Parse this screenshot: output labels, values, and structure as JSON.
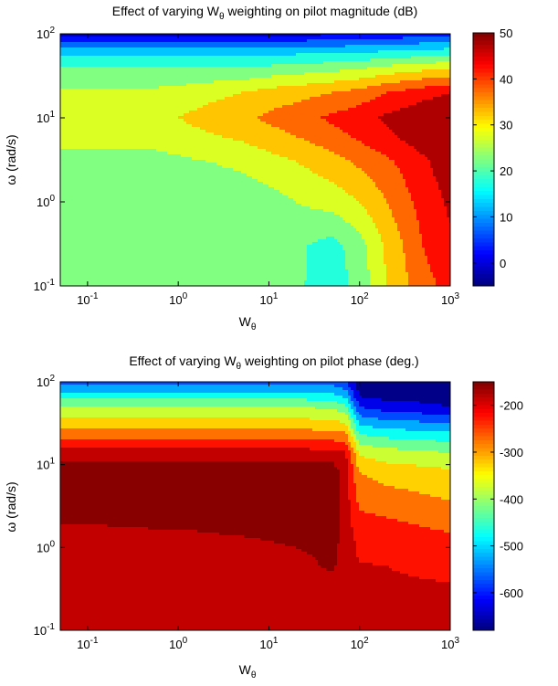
{
  "chart_data": [
    {
      "type": "heatmap",
      "subtype": "filled-contour",
      "title": "Effect of varying W",
      "title_sub": "θ",
      "title_rest": " weighting on pilot magnitude (dB)",
      "xlabel": "W",
      "xlabel_sub": "θ",
      "ylabel": "ω (rad/s)",
      "xscale": "log",
      "yscale": "log",
      "xlim": [
        0.05,
        1000
      ],
      "ylim": [
        0.1,
        100
      ],
      "xticks": [
        {
          "v": 0.1,
          "b": "10",
          "e": "-1"
        },
        {
          "v": 1,
          "b": "10",
          "e": "0"
        },
        {
          "v": 10,
          "b": "10",
          "e": "1"
        },
        {
          "v": 100,
          "b": "10",
          "e": "2"
        },
        {
          "v": 1000,
          "b": "10",
          "e": "3"
        }
      ],
      "yticks": [
        {
          "v": 0.1,
          "b": "10",
          "e": "-1"
        },
        {
          "v": 1,
          "b": "10",
          "e": "0"
        },
        {
          "v": 10,
          "b": "10",
          "e": "1"
        },
        {
          "v": 100,
          "b": "10",
          "e": "2"
        }
      ],
      "colorbar": {
        "min": -5,
        "max": 50,
        "ticks": [
          0,
          10,
          20,
          30,
          40,
          50
        ]
      },
      "levels": [
        -5,
        0,
        5,
        10,
        15,
        20,
        25,
        30,
        35,
        40,
        45,
        50
      ],
      "grid": {
        "x": [
          0.05,
          0.1,
          0.5,
          1,
          5,
          10,
          20,
          50,
          100,
          200,
          500,
          1000
        ],
        "y": [
          0.1,
          0.3,
          1,
          3,
          6,
          10,
          20,
          40,
          60,
          80,
          100
        ],
        "z": [
          [
            22,
            22,
            22,
            22,
            22,
            22,
            21,
            17,
            22,
            30,
            38,
            42
          ],
          [
            22,
            22,
            22,
            22,
            22,
            22,
            21,
            18,
            23,
            31,
            40,
            44
          ],
          [
            22,
            22,
            22,
            22,
            22,
            23,
            25,
            27,
            30,
            35,
            42,
            46
          ],
          [
            23,
            23,
            23,
            24,
            26,
            28,
            30,
            33,
            36,
            39,
            44,
            48
          ],
          [
            27,
            27,
            27,
            28,
            31,
            33,
            35,
            38,
            41,
            44,
            48,
            50
          ],
          [
            29,
            29,
            29,
            30,
            34,
            36,
            38,
            41,
            43,
            46,
            49,
            51
          ],
          [
            26,
            26,
            26,
            27,
            30,
            32,
            33,
            35,
            37,
            40,
            43,
            45
          ],
          [
            20,
            20,
            20,
            20,
            20,
            21,
            22,
            23,
            24,
            26,
            28,
            29
          ],
          [
            13,
            13,
            13,
            13,
            13,
            13,
            14,
            14,
            15,
            16,
            17,
            18
          ],
          [
            6,
            6,
            6,
            6,
            6,
            6,
            6,
            7,
            7,
            8,
            9,
            10
          ],
          [
            -2,
            -2,
            -2,
            -2,
            -2,
            -2,
            -2,
            -1,
            0,
            1,
            2,
            2
          ]
        ]
      }
    },
    {
      "type": "heatmap",
      "subtype": "filled-contour",
      "title": "Effect of varying W",
      "title_sub": "θ",
      "title_rest": " weighting on pilot phase (deg.)",
      "xlabel": "W",
      "xlabel_sub": "θ",
      "ylabel": "ω (rad/s)",
      "xscale": "log",
      "yscale": "log",
      "xlim": [
        0.05,
        1000
      ],
      "ylim": [
        0.1,
        100
      ],
      "xticks": [
        {
          "v": 0.1,
          "b": "10",
          "e": "-1"
        },
        {
          "v": 1,
          "b": "10",
          "e": "0"
        },
        {
          "v": 10,
          "b": "10",
          "e": "1"
        },
        {
          "v": 100,
          "b": "10",
          "e": "2"
        },
        {
          "v": 1000,
          "b": "10",
          "e": "3"
        }
      ],
      "yticks": [
        {
          "v": 0.1,
          "b": "10",
          "e": "-1"
        },
        {
          "v": 1,
          "b": "10",
          "e": "0"
        },
        {
          "v": 10,
          "b": "10",
          "e": "1"
        },
        {
          "v": 100,
          "b": "10",
          "e": "2"
        }
      ],
      "colorbar": {
        "min": -680,
        "max": -150,
        "ticks": [
          -200,
          -300,
          -400,
          -500,
          -600
        ]
      },
      "levels": [
        -700,
        -650,
        -600,
        -550,
        -500,
        -450,
        -400,
        -350,
        -300,
        -250,
        -200,
        -170,
        -140
      ],
      "grid": {
        "x": [
          0.05,
          0.1,
          0.5,
          1,
          5,
          10,
          20,
          50,
          70,
          100,
          200,
          500,
          1000
        ],
        "y": [
          0.1,
          0.3,
          0.6,
          1.5,
          3,
          8,
          14,
          20,
          30,
          50,
          70,
          100
        ],
        "z": [
          [
            -190,
            -190,
            -190,
            -190,
            -190,
            -190,
            -190,
            -190,
            -190,
            -195,
            -195,
            -195,
            -195
          ],
          [
            -190,
            -190,
            -190,
            -190,
            -190,
            -190,
            -190,
            -185,
            -190,
            -195,
            -195,
            -195,
            -195
          ],
          [
            -190,
            -190,
            -190,
            -190,
            -188,
            -185,
            -180,
            -165,
            -185,
            -198,
            -200,
            -205,
            -210
          ],
          [
            -175,
            -175,
            -172,
            -172,
            -168,
            -165,
            -162,
            -160,
            -178,
            -215,
            -225,
            -240,
            -250
          ],
          [
            -160,
            -160,
            -160,
            -160,
            -160,
            -160,
            -160,
            -160,
            -175,
            -255,
            -265,
            -280,
            -290
          ],
          [
            -158,
            -158,
            -158,
            -158,
            -158,
            -158,
            -158,
            -158,
            -178,
            -300,
            -320,
            -330,
            -340
          ],
          [
            -180,
            -180,
            -180,
            -180,
            -180,
            -180,
            -180,
            -180,
            -195,
            -360,
            -380,
            -390,
            -400
          ],
          [
            -250,
            -250,
            -250,
            -250,
            -250,
            -250,
            -250,
            -255,
            -265,
            -420,
            -440,
            -450,
            -460
          ],
          [
            -320,
            -320,
            -320,
            -320,
            -320,
            -320,
            -320,
            -325,
            -335,
            -500,
            -520,
            -530,
            -540
          ],
          [
            -400,
            -400,
            -400,
            -400,
            -400,
            -400,
            -400,
            -410,
            -440,
            -600,
            -630,
            -640,
            -650
          ],
          [
            -480,
            -480,
            -480,
            -480,
            -480,
            -480,
            -480,
            -490,
            -520,
            -660,
            -670,
            -670,
            -670
          ],
          [
            -560,
            -560,
            -560,
            -560,
            -560,
            -560,
            -560,
            -570,
            -600,
            -680,
            -685,
            -685,
            -685
          ]
        ]
      }
    }
  ]
}
